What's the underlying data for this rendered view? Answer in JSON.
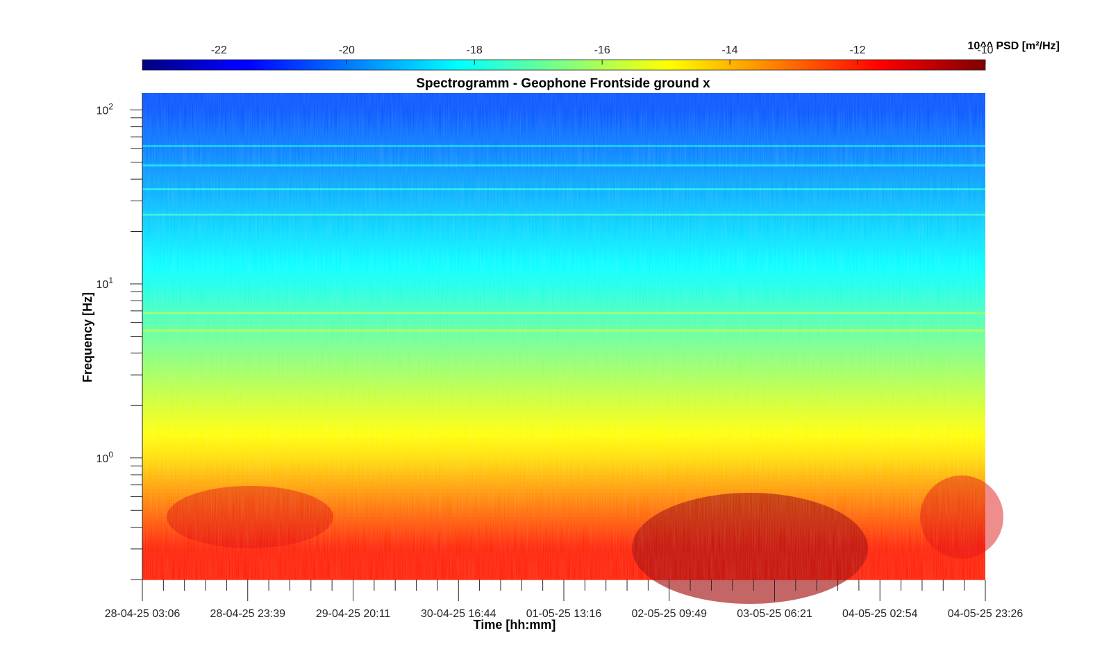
{
  "chart_data": {
    "type": "heatmap",
    "title": "Spectrogramm - Geophone Frontside ground x",
    "xlabel": "Time [hh:mm]",
    "ylabel": "Frequency [Hz]",
    "x_ticks": [
      "28-04-25 03:06",
      "28-04-25 23:39",
      "29-04-25 20:11",
      "30-04-25 16:44",
      "01-05-25 13:16",
      "02-05-25 09:49",
      "03-05-25 06:21",
      "04-05-25 02:54",
      "04-05-25 23:26"
    ],
    "y_scale": "log",
    "ylim": [
      0.2,
      125
    ],
    "y_ticks": [
      {
        "base": "10",
        "exp": "0",
        "value": 1
      },
      {
        "base": "10",
        "exp": "1",
        "value": 10
      },
      {
        "base": "10",
        "exp": "2",
        "value": 100
      }
    ],
    "colorbar": {
      "label": "10^^ PSD [m²/Hz]",
      "range": [
        -23.2,
        -10
      ],
      "ticks": [
        "-22",
        "-20",
        "-18",
        "-16",
        "-14",
        "-12",
        "-10"
      ],
      "tick_values": [
        -22,
        -20,
        -18,
        -16,
        -14,
        -12,
        -10
      ],
      "colormap": "jet",
      "placement": "top"
    },
    "spectral_lines_hz": [
      5.4,
      6.8,
      25,
      35,
      48,
      62
    ],
    "approx_levels": [
      {
        "freq_hz": 100,
        "log10_psd": -20.5
      },
      {
        "freq_hz": 10,
        "log10_psd": -18
      },
      {
        "freq_hz": 2,
        "log10_psd": -15.5
      },
      {
        "freq_hz": 1,
        "log10_psd": -14.5
      },
      {
        "freq_hz": 0.3,
        "log10_psd": -12
      }
    ]
  }
}
